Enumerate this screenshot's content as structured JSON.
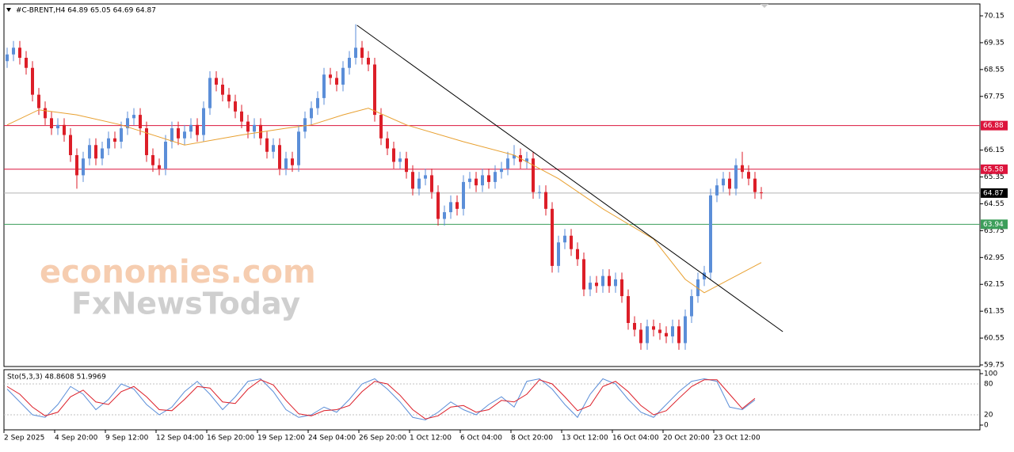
{
  "chart_data": [
    {
      "type": "candlestick",
      "title": "#C-BRENT,H4 64.89 65.05 64.69 64.87",
      "up_color": "#5b8ed8",
      "down_color": "#dc1e28",
      "open": [
        68.8,
        69.0,
        69.2,
        68.9,
        68.6,
        67.8,
        67.4,
        67.1,
        66.8,
        66.9,
        66.6,
        66.0,
        65.4,
        65.9,
        66.3,
        65.9,
        66.2,
        66.5,
        66.4,
        66.8,
        67.1,
        67.2,
        66.8,
        66.0,
        65.7,
        65.6,
        66.4,
        66.8,
        66.5,
        66.7,
        66.9,
        66.6,
        67.4,
        68.3,
        68.1,
        67.8,
        67.6,
        67.3,
        67.0,
        66.7,
        66.9,
        66.5,
        66.1,
        66.3,
        65.6,
        65.9,
        65.7,
        66.7,
        67.1,
        67.4,
        67.7,
        68.4,
        68.3,
        68.1,
        68.6,
        68.9,
        69.2,
        68.9,
        68.7,
        67.2,
        66.5,
        66.2,
        65.8,
        65.9,
        65.5,
        65.0,
        65.3,
        65.4,
        64.9,
        64.1,
        64.3,
        64.6,
        64.4,
        65.2,
        65.3,
        65.1,
        65.4,
        65.2,
        65.5,
        65.6,
        65.9,
        66.0,
        65.8,
        65.9,
        64.9,
        64.9,
        64.4,
        62.7,
        63.4,
        63.6,
        63.2,
        62.9,
        62.0,
        62.2,
        62.1,
        62.4,
        62.1,
        62.3,
        61.8,
        61.0,
        60.8,
        60.4,
        60.9,
        60.8,
        60.7,
        60.6,
        60.9,
        60.4,
        61.2,
        61.8,
        62.3,
        62.5,
        64.8,
        65.1,
        65.3,
        65.0,
        65.7,
        65.5,
        65.3,
        64.89
      ],
      "high": [
        69.2,
        69.4,
        69.4,
        69.1,
        68.8,
        68.0,
        67.6,
        67.3,
        67.1,
        67.1,
        66.8,
        66.2,
        66.1,
        66.5,
        66.5,
        66.4,
        66.7,
        66.7,
        67.0,
        67.3,
        67.4,
        67.4,
        67.0,
        66.2,
        65.9,
        66.6,
        67.0,
        67.0,
        66.9,
        67.1,
        67.1,
        67.6,
        68.5,
        68.5,
        68.3,
        68.0,
        67.8,
        67.5,
        67.2,
        67.1,
        67.1,
        66.7,
        66.5,
        66.5,
        66.1,
        66.1,
        66.9,
        67.3,
        67.6,
        67.9,
        68.6,
        68.6,
        68.5,
        68.8,
        69.1,
        69.9,
        69.4,
        69.1,
        68.9,
        67.4,
        66.7,
        66.4,
        66.1,
        66.1,
        65.7,
        65.5,
        65.6,
        65.6,
        65.1,
        64.5,
        64.8,
        64.8,
        65.4,
        65.5,
        65.5,
        65.6,
        65.6,
        65.7,
        65.8,
        66.1,
        66.3,
        66.2,
        66.1,
        66.1,
        65.1,
        65.1,
        64.6,
        63.6,
        63.8,
        63.8,
        63.4,
        63.1,
        62.4,
        62.4,
        62.6,
        62.6,
        62.5,
        62.5,
        62.0,
        61.2,
        61.0,
        61.1,
        61.1,
        61.0,
        60.9,
        61.1,
        61.1,
        61.4,
        62.0,
        62.5,
        62.7,
        65.0,
        65.3,
        65.5,
        65.5,
        65.9,
        66.1,
        65.7,
        65.5,
        65.05
      ],
      "low": [
        68.6,
        68.8,
        68.7,
        68.4,
        67.6,
        67.2,
        66.9,
        66.6,
        66.6,
        66.4,
        65.8,
        65.0,
        65.2,
        65.7,
        65.7,
        65.7,
        66.0,
        66.2,
        66.2,
        66.6,
        66.9,
        66.6,
        65.8,
        65.5,
        65.4,
        65.4,
        66.2,
        66.3,
        66.3,
        66.5,
        66.4,
        66.4,
        67.2,
        67.9,
        67.6,
        67.4,
        67.1,
        66.8,
        66.5,
        66.5,
        66.3,
        65.9,
        65.9,
        65.4,
        65.4,
        65.5,
        65.5,
        66.5,
        66.9,
        67.2,
        67.5,
        68.1,
        67.9,
        67.9,
        68.4,
        68.7,
        68.7,
        68.5,
        67.0,
        66.3,
        66.0,
        65.6,
        65.6,
        65.3,
        64.8,
        64.8,
        65.1,
        64.7,
        63.9,
        63.9,
        64.1,
        64.2,
        64.2,
        65.0,
        64.9,
        64.9,
        65.0,
        65.0,
        65.3,
        65.4,
        65.7,
        65.6,
        65.6,
        64.7,
        64.7,
        64.2,
        62.5,
        62.5,
        63.2,
        63.0,
        62.7,
        61.8,
        61.8,
        61.9,
        61.9,
        61.9,
        61.9,
        61.6,
        60.8,
        60.6,
        60.2,
        60.2,
        60.6,
        60.5,
        60.4,
        60.4,
        60.2,
        60.2,
        61.0,
        61.6,
        62.1,
        62.3,
        64.6,
        64.9,
        64.8,
        64.8,
        65.3,
        65.1,
        64.7,
        64.69
      ],
      "close": [
        69.0,
        69.2,
        68.9,
        68.6,
        67.8,
        67.4,
        67.1,
        66.8,
        66.9,
        66.6,
        66.0,
        65.4,
        65.9,
        66.3,
        65.9,
        66.2,
        66.5,
        66.4,
        66.8,
        67.1,
        67.2,
        66.8,
        66.0,
        65.7,
        65.6,
        66.4,
        66.8,
        66.5,
        66.7,
        66.9,
        66.6,
        67.4,
        68.3,
        68.1,
        67.8,
        67.6,
        67.3,
        67.0,
        66.7,
        66.9,
        66.5,
        66.1,
        66.3,
        65.6,
        65.9,
        65.7,
        66.7,
        67.1,
        67.4,
        67.7,
        68.4,
        68.3,
        68.1,
        68.6,
        68.9,
        69.2,
        68.9,
        68.7,
        67.2,
        66.5,
        66.2,
        65.8,
        65.9,
        65.5,
        65.0,
        65.3,
        65.4,
        64.9,
        64.1,
        64.3,
        64.6,
        64.4,
        65.2,
        65.3,
        65.1,
        65.4,
        65.2,
        65.5,
        65.6,
        65.9,
        66.0,
        65.8,
        65.9,
        64.9,
        64.9,
        64.4,
        62.7,
        63.4,
        63.6,
        63.2,
        62.9,
        62.0,
        62.2,
        62.1,
        62.4,
        62.1,
        62.3,
        61.8,
        61.0,
        60.8,
        60.4,
        60.9,
        60.8,
        60.7,
        60.6,
        60.9,
        60.4,
        61.2,
        61.8,
        62.3,
        62.5,
        64.8,
        65.1,
        65.3,
        65.0,
        65.7,
        65.5,
        65.3,
        64.9,
        64.87
      ],
      "ma": {
        "color": "#e8a030",
        "x": [
          0,
          5,
          11,
          18,
          28,
          37,
          44,
          48,
          53,
          57,
          63,
          72,
          80,
          87,
          94,
          102,
          107,
          110,
          112,
          119
        ],
        "values": [
          66.9,
          67.35,
          67.2,
          66.9,
          66.3,
          66.6,
          66.8,
          66.9,
          67.2,
          67.4,
          66.9,
          66.4,
          66.0,
          65.3,
          64.4,
          63.5,
          62.3,
          61.9,
          62.1,
          62.8
        ]
      },
      "trendline": {
        "color": "#000000",
        "x": [
          55.2,
          122.4
        ],
        "y": [
          69.87,
          60.74
        ]
      },
      "levels": [
        {
          "value": 66.88,
          "color": "#dc143c"
        },
        {
          "value": 65.58,
          "color": "#dc143c"
        },
        {
          "value": 64.87,
          "color": "#000000"
        },
        {
          "value": 63.94,
          "color": "#3c9e5a"
        }
      ],
      "ylim": [
        59.75,
        70.15
      ],
      "yticks": [
        {
          "value": 70.15,
          "label": "70.15"
        },
        69.35,
        68.55,
        67.75,
        66.15,
        65.35,
        64.55,
        63.75,
        62.95,
        62.15,
        61.35,
        60.55,
        59.75
      ],
      "xticks": [
        {
          "value": 0,
          "label": "2 Sep 2025"
        },
        {
          "value": 8,
          "label": "4 Sep 20:00"
        },
        {
          "value": 16,
          "label": "9 Sep 12:00"
        },
        {
          "value": 24,
          "label": "12 Sep 04:00"
        },
        {
          "value": 32,
          "label": "16 Sep 20:00"
        },
        {
          "value": 40,
          "label": "19 Sep 12:00"
        },
        {
          "value": 48,
          "label": "24 Sep 04:00"
        },
        {
          "value": 56,
          "label": "26 Sep 20:00"
        },
        {
          "value": 64,
          "label": "1 Oct 12:00"
        },
        {
          "value": 72,
          "label": "6 Oct 04:00"
        },
        {
          "value": 80,
          "label": "8 Oct 20:00"
        },
        {
          "value": 88,
          "label": "13 Oct 12:00"
        },
        {
          "value": 96,
          "label": "16 Oct 04:00"
        },
        {
          "value": 104,
          "label": "20 Oct 20:00"
        },
        {
          "value": 112,
          "label": "23 Oct 12:00"
        }
      ],
      "watermarks": [
        "economies.com",
        "FxNewsToday"
      ]
    },
    {
      "type": "line",
      "title": "Sto(5,3,3) 48.8608 51.9969",
      "x": [
        0,
        2,
        4,
        6,
        8,
        10,
        12,
        14,
        16,
        18,
        20,
        22,
        24,
        26,
        28,
        30,
        32,
        34,
        36,
        38,
        40,
        42,
        44,
        46,
        48,
        50,
        52,
        54,
        56,
        58,
        60,
        62,
        64,
        66,
        68,
        70,
        72,
        74,
        76,
        78,
        80,
        82,
        84,
        86,
        88,
        90,
        92,
        94,
        96,
        98,
        100,
        102,
        104,
        106,
        108,
        110,
        112,
        114,
        116,
        118
      ],
      "series": [
        {
          "color": "#5b8ed8",
          "values": [
            70,
            45,
            20,
            15,
            40,
            75,
            60,
            30,
            50,
            80,
            70,
            40,
            20,
            35,
            65,
            85,
            60,
            30,
            55,
            85,
            90,
            65,
            30,
            15,
            20,
            35,
            25,
            50,
            80,
            90,
            70,
            45,
            15,
            10,
            25,
            45,
            30,
            20,
            40,
            55,
            35,
            85,
            90,
            70,
            40,
            15,
            60,
            90,
            80,
            50,
            25,
            15,
            40,
            65,
            85,
            90,
            85,
            35,
            30,
            48.8608
          ]
        },
        {
          "color": "#dc1e28",
          "values": [
            75,
            60,
            35,
            18,
            25,
            55,
            68,
            45,
            40,
            65,
            75,
            55,
            30,
            28,
            50,
            75,
            72,
            45,
            42,
            70,
            88,
            78,
            48,
            22,
            18,
            28,
            30,
            38,
            65,
            85,
            80,
            58,
            30,
            12,
            18,
            35,
            38,
            25,
            30,
            48,
            45,
            60,
            88,
            80,
            55,
            28,
            38,
            75,
            85,
            65,
            38,
            20,
            28,
            52,
            75,
            88,
            88,
            60,
            32,
            51.9969
          ]
        }
      ],
      "ylim": [
        0,
        100
      ],
      "yticks": [
        0,
        20,
        80,
        100
      ]
    }
  ]
}
